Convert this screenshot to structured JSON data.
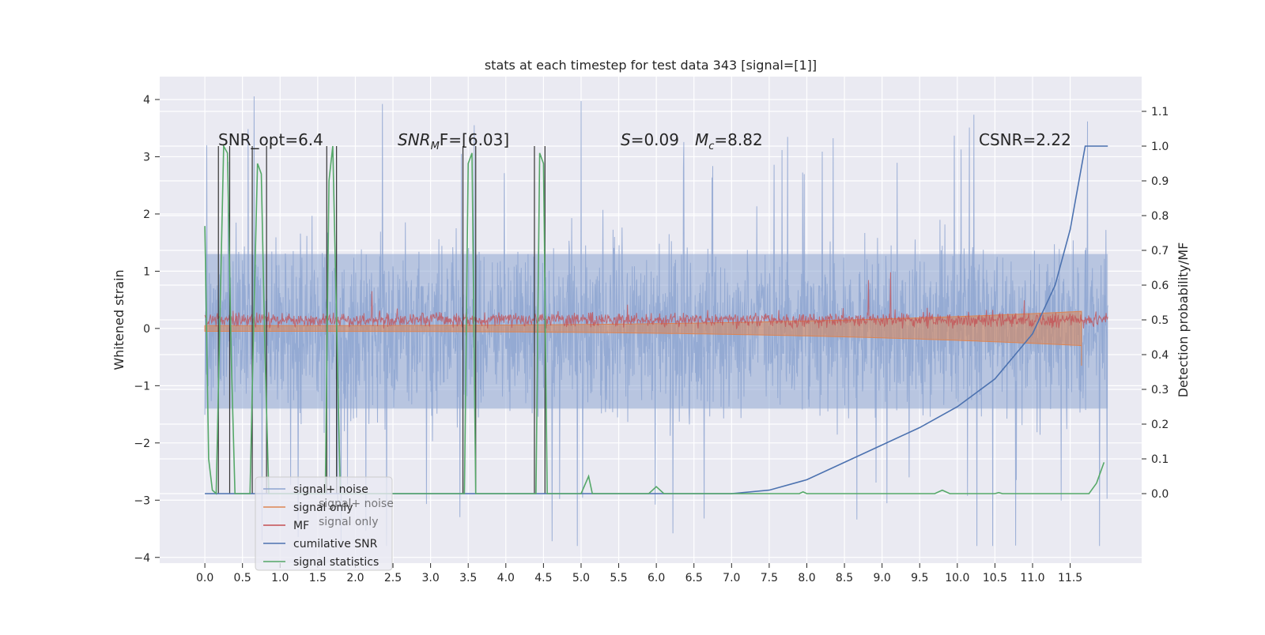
{
  "chart_data": {
    "type": "line",
    "title": "stats at each timestep for test data 343 [signal=[1]]",
    "ylabel_left": "Whitened strain",
    "ylabel_right": "Detection probability/MF",
    "xlim": [
      -0.6,
      12.45
    ],
    "ylim_left": [
      -4.1,
      4.4
    ],
    "ylim_right": [
      -0.2,
      1.2
    ],
    "x_ticks": [
      "0.0",
      "0.5",
      "1.0",
      "1.5",
      "2.0",
      "2.5",
      "3.0",
      "3.5",
      "4.0",
      "4.5",
      "5.0",
      "5.5",
      "6.0",
      "6.5",
      "7.0",
      "7.5",
      "8.0",
      "8.5",
      "9.0",
      "9.5",
      "10.0",
      "10.5",
      "11.0",
      "11.5"
    ],
    "y_ticks_left": [
      "−4",
      "−3",
      "−2",
      "−1",
      "0",
      "1",
      "2",
      "3",
      "4"
    ],
    "y_ticks_right": [
      "0.0",
      "0.1",
      "0.2",
      "0.3",
      "0.4",
      "0.5",
      "0.6",
      "0.7",
      "0.8",
      "0.9",
      "1.0",
      "1.1"
    ],
    "grid": true,
    "legend_position": "lower-left",
    "colors": {
      "background": "#eaeaf2",
      "grid": "#ffffff",
      "signal_noise": "#8ea5d1",
      "signal_only": "#dd8452",
      "mf": "#c44e52",
      "cumulative_snr": "#4c72b0",
      "signal_statistics": "#55a868",
      "marker_lines": "#333333"
    },
    "annotations": {
      "snr_opt": "SNR_opt=6.4",
      "snr_mf_main": "SNR",
      "snr_mf_sub": "M",
      "snr_mf_rest": "F=[6.03]",
      "s_label": "S",
      "s_value": "=0.09",
      "mc_label": "M",
      "mc_sub": "c",
      "mc_value": "=8.82",
      "csnr": "CSNR=2.22"
    },
    "legend_items": [
      "signal+ noise",
      "signal only",
      "MF",
      "cumilative SNR",
      "signal statistics"
    ],
    "legend_ghost_items": [
      "signal+ noise",
      "signal only"
    ],
    "series": [
      {
        "name": "signal+ noise",
        "axis": "left",
        "envelope": {
          "x_range": [
            0.0,
            12.0
          ],
          "typical_abs": 1.3,
          "peak_abs_max": 4.1,
          "band_upper": 1.3,
          "band_lower": -1.4
        }
      },
      {
        "name": "signal only",
        "axis": "left",
        "chirp": {
          "x_start": 0.0,
          "x_end": 11.65,
          "amp_start": 0.05,
          "amp_end": 0.3,
          "dip_end": -0.65
        }
      },
      {
        "name": "MF",
        "axis": "left",
        "noise": {
          "x_range": [
            0.0,
            12.0
          ],
          "center": 0.15,
          "typical_abs": 0.25,
          "peak_max": 1.0
        }
      },
      {
        "name": "cumilative SNR",
        "axis": "right",
        "x": [
          0.0,
          0.5,
          1.0,
          2.0,
          3.0,
          4.0,
          5.0,
          6.0,
          7.0,
          7.5,
          8.0,
          8.5,
          9.0,
          9.5,
          10.0,
          10.5,
          11.0,
          11.3,
          11.5,
          11.7,
          12.0
        ],
        "y": [
          0.0,
          0.0,
          0.0,
          0.0,
          0.0,
          0.0,
          0.0,
          0.0,
          0.0,
          0.01,
          0.04,
          0.09,
          0.14,
          0.19,
          0.25,
          0.33,
          0.46,
          0.6,
          0.76,
          1.0,
          1.0
        ]
      },
      {
        "name": "signal statistics",
        "axis": "right",
        "x": [
          0.0,
          0.05,
          0.1,
          0.15,
          0.2,
          0.25,
          0.3,
          0.35,
          0.4,
          0.45,
          0.5,
          0.6,
          0.65,
          0.7,
          0.75,
          0.8,
          0.85,
          0.9,
          1.0,
          1.5,
          1.6,
          1.65,
          1.7,
          1.75,
          1.8,
          1.85,
          2.0,
          3.0,
          3.4,
          3.45,
          3.5,
          3.55,
          3.6,
          3.65,
          3.7,
          4.3,
          4.35,
          4.4,
          4.45,
          4.5,
          4.55,
          4.6,
          5.0,
          5.1,
          5.15,
          5.2,
          5.3,
          5.5,
          5.9,
          6.0,
          6.1,
          7.0,
          7.9,
          7.95,
          8.0,
          8.1,
          9.7,
          9.8,
          9.9,
          10.5,
          10.55,
          10.6,
          11.5,
          11.6,
          11.75,
          11.85,
          11.95
        ],
        "y": [
          0.77,
          0.1,
          0.01,
          0.0,
          0.5,
          1.0,
          0.98,
          0.4,
          0.0,
          0.0,
          0.0,
          0.0,
          0.5,
          0.95,
          0.92,
          0.4,
          0.0,
          0.0,
          0.0,
          0.0,
          0.0,
          0.9,
          1.0,
          0.5,
          0.0,
          0.0,
          0.0,
          0.0,
          0.0,
          0.0,
          0.95,
          0.98,
          0.0,
          0.0,
          0.0,
          0.0,
          0.0,
          0.0,
          0.98,
          0.95,
          0.0,
          0.0,
          0.0,
          0.05,
          0.0,
          0.0,
          0.0,
          0.0,
          0.0,
          0.02,
          0.0,
          0.0,
          0.0,
          0.005,
          0.0,
          0.0,
          0.0,
          0.01,
          0.0,
          0.0,
          0.003,
          0.0,
          0.0,
          0.0,
          0.0,
          0.03,
          0.09
        ]
      }
    ],
    "marker_lines_x": [
      0.18,
      0.33,
      0.63,
      0.82,
      1.62,
      1.75,
      3.43,
      3.6,
      4.38,
      4.52
    ]
  }
}
